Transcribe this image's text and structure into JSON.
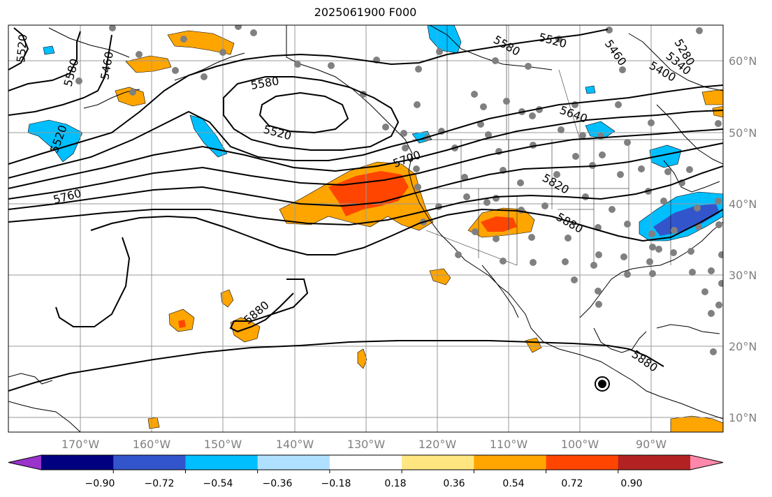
{
  "title": "2025061900 F000",
  "longitude_labels": [
    "170°W",
    "160°W",
    "150°W",
    "140°W",
    "130°W",
    "120°W",
    "110°W",
    "100°W",
    "90°W"
  ],
  "latitude_labels": [
    "60°N",
    "50°N",
    "40°N",
    "30°N",
    "20°N",
    "10°N"
  ],
  "contour_labels": [
    "5520",
    "5580",
    "5460",
    "5520",
    "5580",
    "5520",
    "5580",
    "5520",
    "5460",
    "5280",
    "5340",
    "5400",
    "5640",
    "5700",
    "5760",
    "5820",
    "5880",
    "5880",
    "5880"
  ],
  "colorbar": {
    "colors": [
      "#9933cc",
      "#000080",
      "#3355cc",
      "#00bfff",
      "#b0e0ff",
      "#ffffff",
      "#ffe680",
      "#ffa500",
      "#ff4500",
      "#b22222",
      "#ff88aa"
    ],
    "tick_labels": [
      "−0.90",
      "−0.72",
      "−0.54",
      "−0.36",
      "−0.18",
      "0.18",
      "0.36",
      "0.54",
      "0.72",
      "0.90"
    ]
  },
  "colors": {
    "graticule": "#999999",
    "contour": "#000000",
    "coast": "#000000",
    "station": "#808080"
  }
}
